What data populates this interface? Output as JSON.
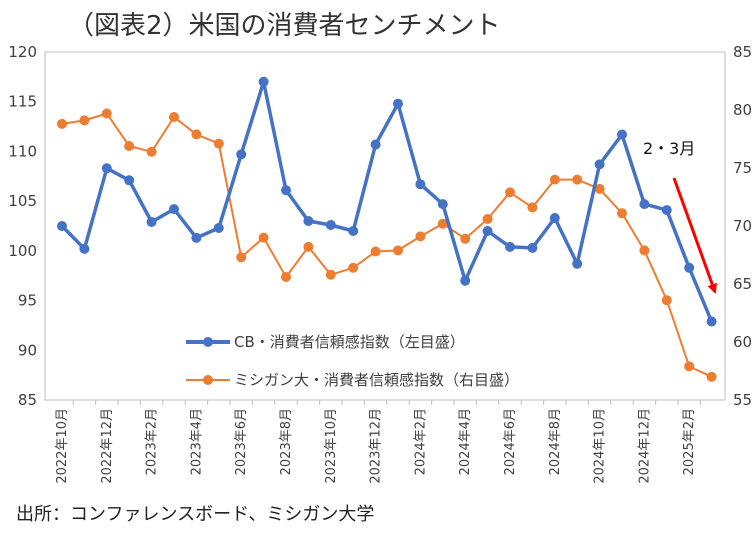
{
  "chart_data": {
    "type": "line",
    "title": "（図表2）米国の消費者センチメント",
    "source": "出所：コンファレンスボード、ミシガン大学",
    "annotation": "2・3月",
    "categories": [
      "2022年10月",
      "2022年11月",
      "2022年12月",
      "2023年1月",
      "2023年2月",
      "2023年3月",
      "2023年4月",
      "2023年5月",
      "2023年6月",
      "2023年7月",
      "2023年8月",
      "2023年9月",
      "2023年10月",
      "2023年11月",
      "2023年12月",
      "2024年1月",
      "2024年2月",
      "2024年3月",
      "2024年4月",
      "2024年5月",
      "2024年6月",
      "2024年7月",
      "2024年8月",
      "2024年9月",
      "2024年10月",
      "2024年11月",
      "2024年12月",
      "2025年1月",
      "2025年2月",
      "2025年3月"
    ],
    "x_tick_labels": [
      "2022年10月",
      "2022年12月",
      "2023年2月",
      "2023年4月",
      "2023年6月",
      "2023年8月",
      "2023年10月",
      "2023年12月",
      "2024年2月",
      "2024年4月",
      "2024年6月",
      "2024年8月",
      "2024年10月",
      "2024年12月",
      "2025年2月"
    ],
    "left_axis": {
      "ylim": [
        85,
        120
      ],
      "ticks": [
        85,
        90,
        95,
        100,
        105,
        110,
        115,
        120
      ]
    },
    "right_axis": {
      "ylim": [
        55,
        85
      ],
      "ticks": [
        55,
        60,
        65,
        70,
        75,
        80,
        85
      ]
    },
    "series": [
      {
        "name": "CB・消費者信頼感指数（左目盛）",
        "axis": "left",
        "color": "#4472C4",
        "values": [
          102.5,
          100.2,
          108.3,
          107.1,
          102.9,
          104.2,
          101.3,
          102.3,
          109.7,
          117.0,
          106.1,
          103.0,
          102.6,
          102.0,
          110.7,
          114.8,
          106.7,
          104.7,
          97.0,
          102.0,
          100.4,
          100.3,
          103.3,
          98.7,
          108.7,
          111.7,
          104.7,
          104.1,
          98.3,
          92.9
        ]
      },
      {
        "name": "ミシガン大・消費者信頼感指数（右目盛）",
        "axis": "right",
        "color": "#ED7D31",
        "values": [
          78.8,
          79.1,
          79.7,
          76.9,
          76.4,
          79.4,
          77.9,
          77.1,
          67.3,
          69.0,
          65.6,
          68.2,
          65.8,
          66.4,
          67.8,
          67.9,
          69.1,
          70.2,
          68.9,
          70.6,
          72.9,
          71.6,
          74.0,
          74.0,
          73.2,
          71.1,
          67.9,
          63.6,
          57.9,
          57.0
        ]
      }
    ],
    "colors": {
      "arrow": "#FF0000",
      "axis": "#BFBFBF",
      "text": "#404040"
    }
  }
}
